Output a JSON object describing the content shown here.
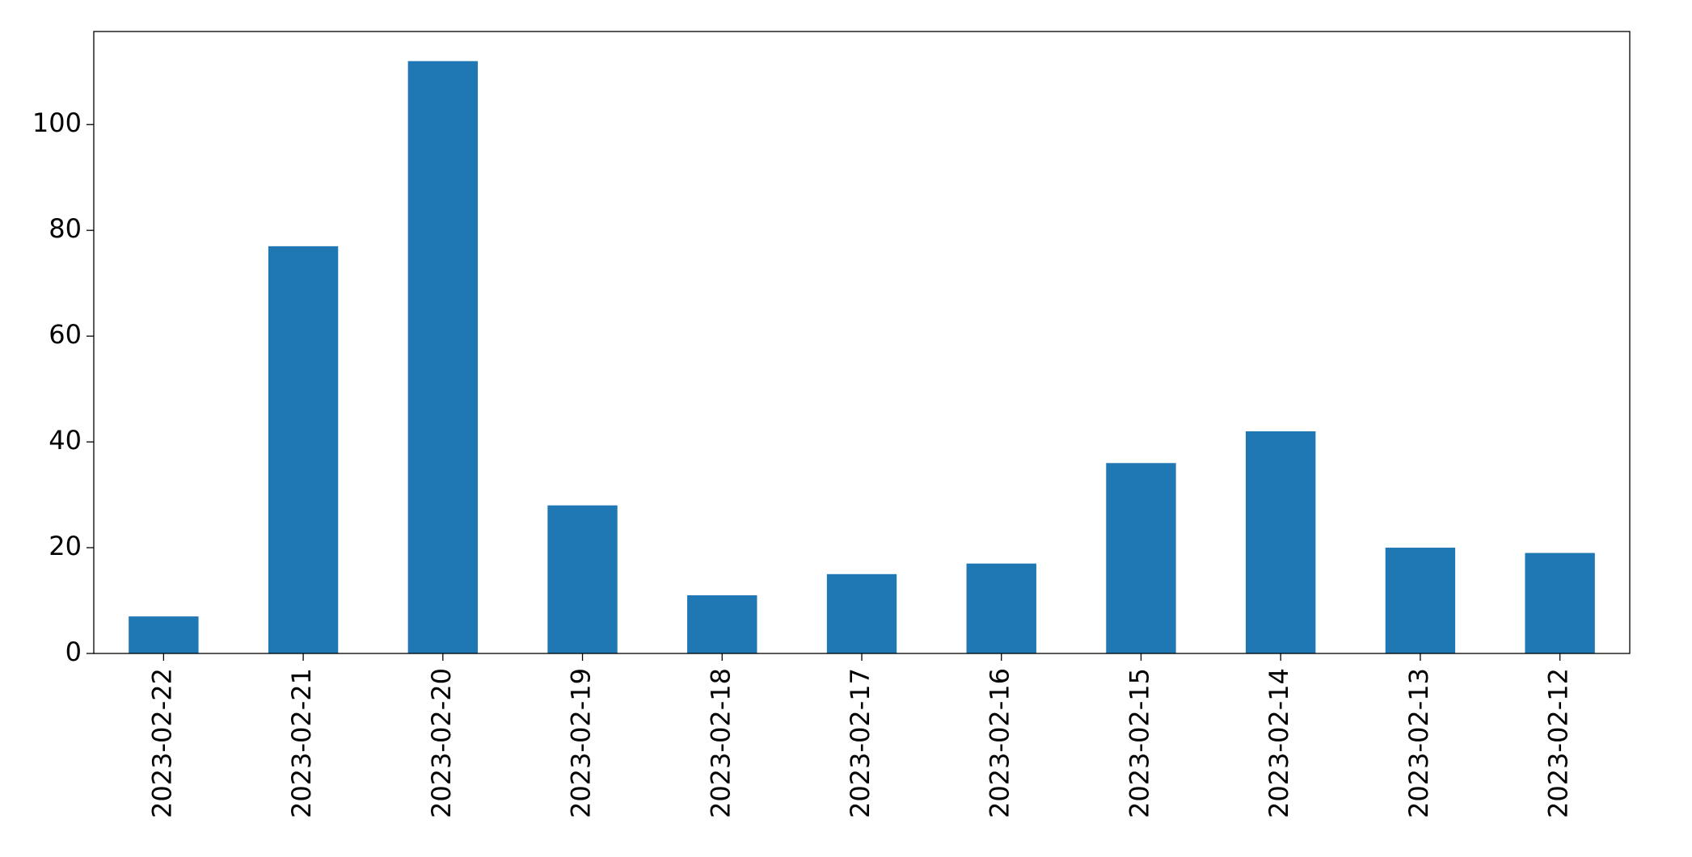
{
  "chart_data": {
    "type": "bar",
    "categories": [
      "2023-02-22",
      "2023-02-21",
      "2023-02-20",
      "2023-02-19",
      "2023-02-18",
      "2023-02-17",
      "2023-02-16",
      "2023-02-15",
      "2023-02-14",
      "2023-02-13",
      "2023-02-12"
    ],
    "values": [
      7,
      77,
      112,
      28,
      11,
      15,
      17,
      36,
      42,
      20,
      19
    ],
    "color": "#1f77b4",
    "ylim": [
      0,
      117.6
    ],
    "yticks": [
      0,
      20,
      40,
      60,
      80,
      100
    ],
    "grid": false
  }
}
